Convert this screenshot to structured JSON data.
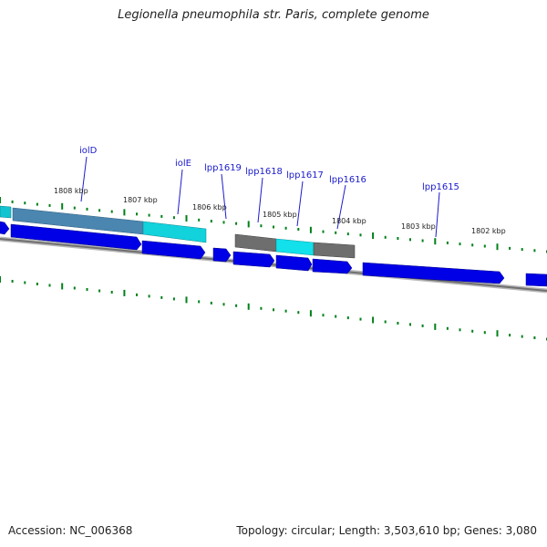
{
  "title": "Legionella pneumophila str. Paris, complete genome",
  "footer": {
    "accession_label": "Accession:",
    "accession": "NC_006368",
    "topology_text": "Topology: circular; Length: 3,503,610 bp; Genes: 3,080"
  },
  "colors": {
    "forward_gene": "#0000e6",
    "highlight_gene": "#00d8e0",
    "muted_gene": "#4a86b0",
    "gray_gene": "#6e6e6e",
    "backbone": "#808080",
    "tick": "#00801a",
    "label": "#1a1acc"
  },
  "scale_labels": [
    "1808 kbp",
    "1807 kbp",
    "1806 kbp",
    "1805 kbp",
    "1804 kbp",
    "1803 kbp",
    "1802 kbp"
  ],
  "gene_labels": [
    "iolD",
    "iolE",
    "lpp1619",
    "lpp1618",
    "lpp1617",
    "lpp1616",
    "lpp1615"
  ]
}
